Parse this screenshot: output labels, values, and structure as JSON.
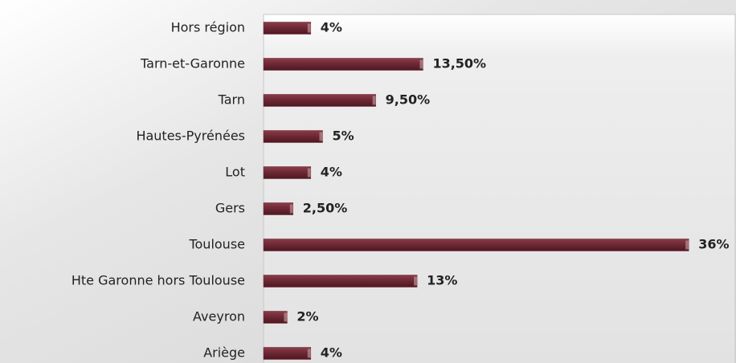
{
  "chart_data": {
    "type": "bar",
    "orientation": "horizontal",
    "categories": [
      "Hors région",
      "Tarn-et-Garonne",
      "Tarn",
      "Hautes-Pyrénées",
      "Lot",
      "Gers",
      "Toulouse",
      "Hte Garonne hors Toulouse",
      "Aveyron",
      "Ariège"
    ],
    "values": [
      4,
      13.5,
      9.5,
      5,
      4,
      2.5,
      36,
      13,
      2,
      4
    ],
    "value_labels": [
      "4%",
      "13,50%",
      "9,50%",
      "5%",
      "4%",
      "2,50%",
      "36%",
      "13%",
      "2%",
      "4%"
    ],
    "color": "#6b2733"
  }
}
